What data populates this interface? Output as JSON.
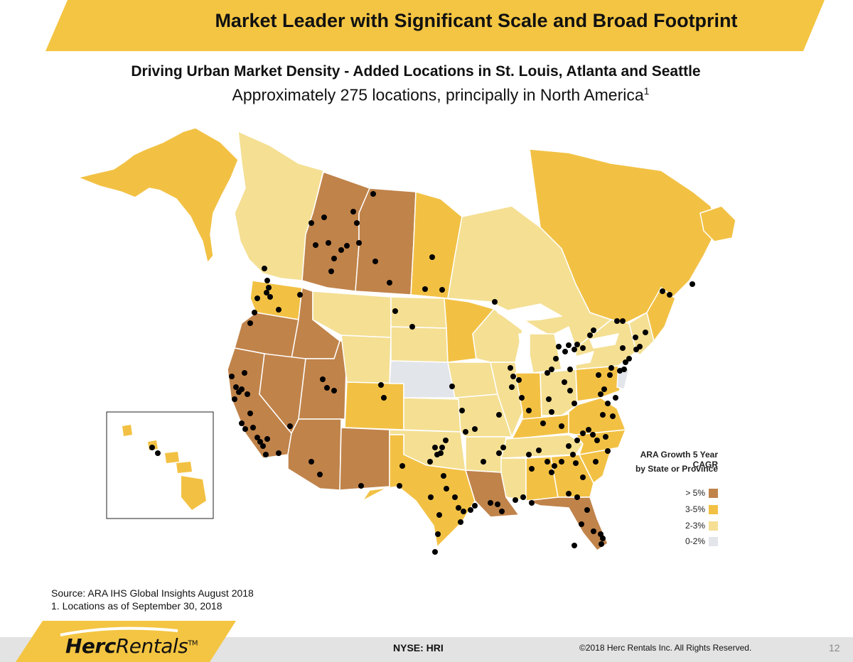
{
  "header": {
    "title": "Market Leader with Significant Scale and Broad Footprint",
    "subtitle": "Driving Urban Market Density - Added Locations in St. Louis, Atlanta and Seattle",
    "locations_text": "Approximately 275 locations, principally in North America",
    "locations_footnote_mark": "1"
  },
  "colors": {
    "banner": "#f4c542",
    "gt5": "#c0834a",
    "r35": "#f2c144",
    "r23": "#f4df93",
    "r02": "#e2e5ea",
    "dot": "#000000",
    "border": "#ffffff"
  },
  "legend": {
    "title_line1": "ARA Growth 5 Year CAGR",
    "title_line2": "by State or Province",
    "items": [
      {
        "label": "> 5%",
        "color": "#c0834a"
      },
      {
        "label": "3-5%",
        "color": "#f2c144"
      },
      {
        "label": "2-3%",
        "color": "#f4df93"
      },
      {
        "label": "0-2%",
        "color": "#e2e5ea"
      }
    ]
  },
  "notes": {
    "source": "Source: ARA IHS Global Insights August 2018",
    "footnote": "1.  Locations as of September 30, 2018"
  },
  "footer": {
    "logo_bold": "Herc",
    "logo_regular": "Rentals",
    "logo_tm": "TM",
    "ticker": "NYSE: HRI",
    "copyright": "©2018 Herc Rentals Inc.  All Rights Reserved.",
    "page_number": "12"
  }
}
